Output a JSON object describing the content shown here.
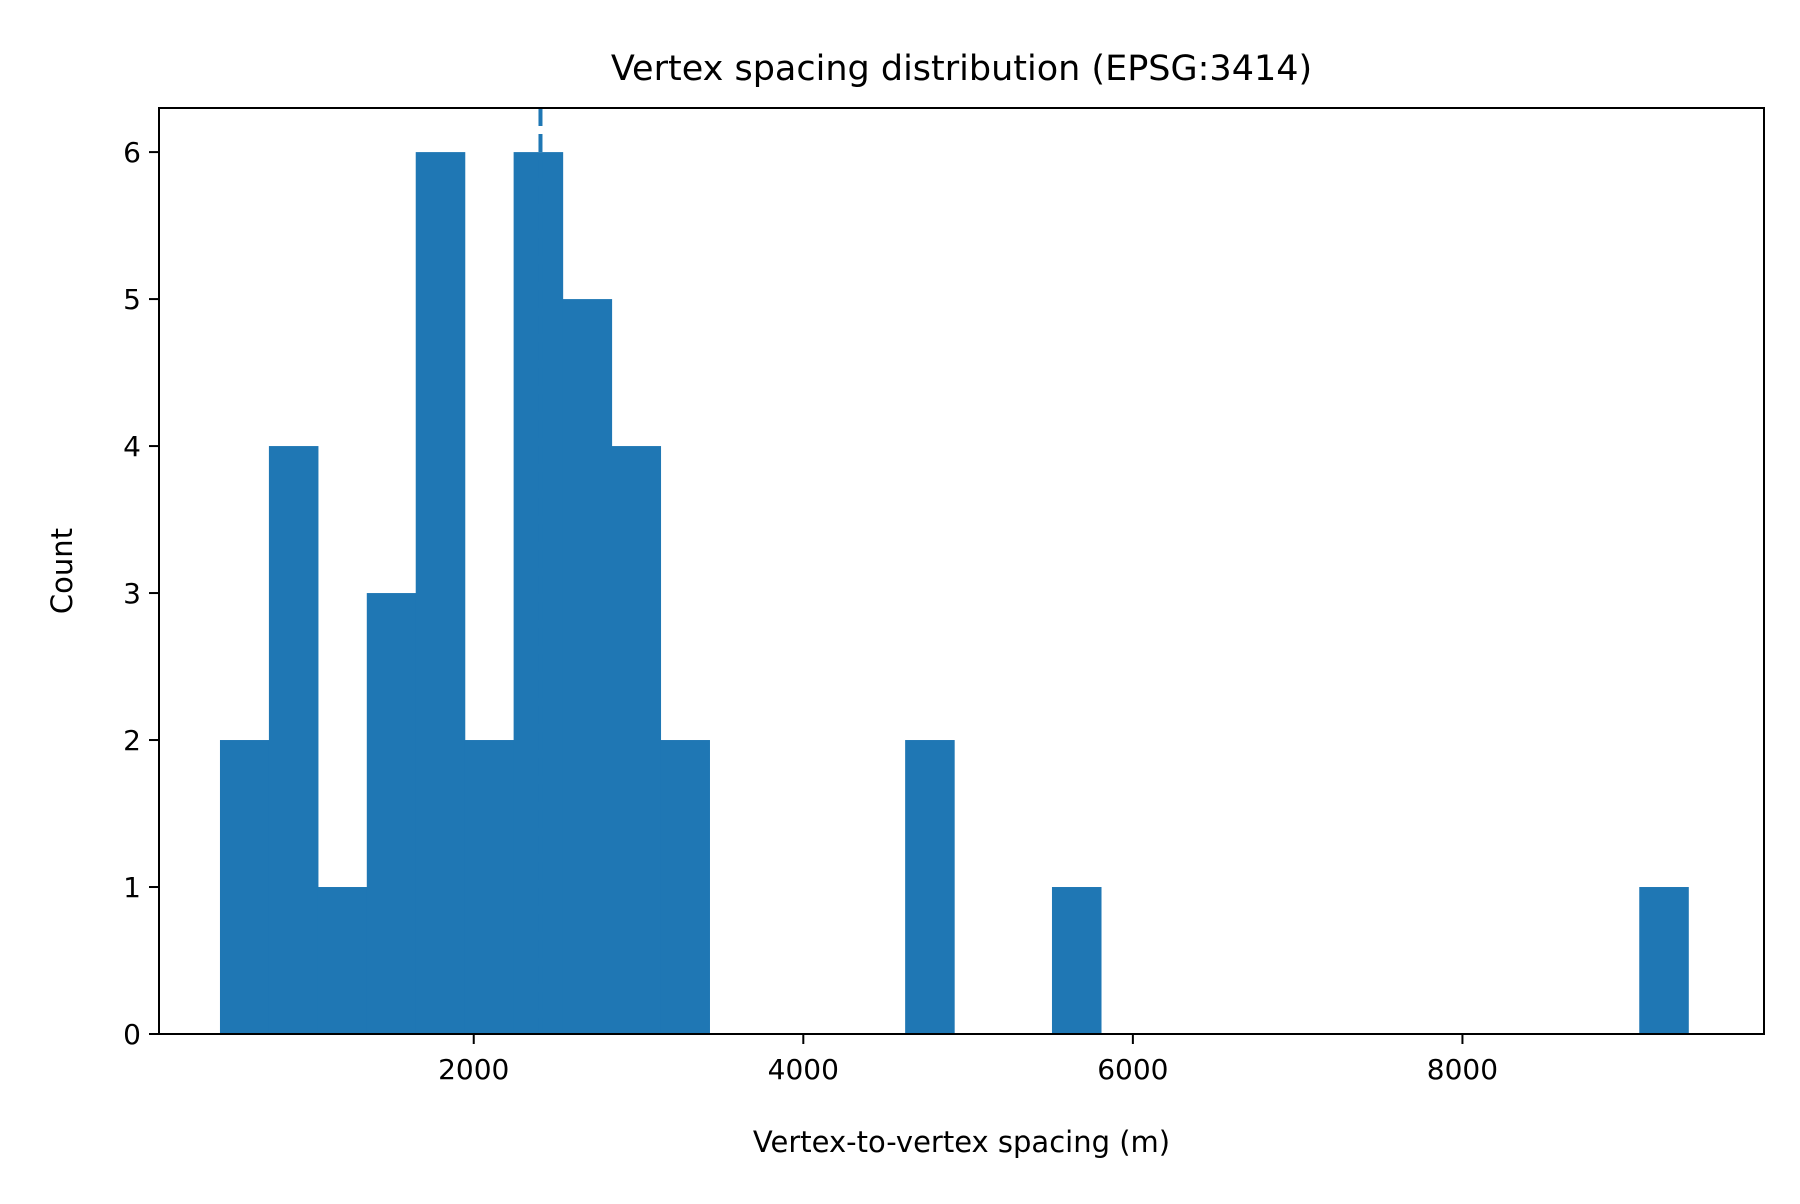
{
  "chart_data": {
    "type": "bar",
    "title": "Vertex spacing distribution (EPSG:3414)",
    "xlabel": "Vertex-to-vertex spacing (m)",
    "ylabel": "Count",
    "x_ticks": [
      "2000",
      "4000",
      "6000",
      "8000"
    ],
    "y_ticks": [
      "0",
      "1",
      "2",
      "3",
      "4",
      "5",
      "6"
    ],
    "xlim": [
      90,
      9830
    ],
    "ylim": [
      0,
      6.3
    ],
    "bin_edges": [
      460,
      757,
      1054,
      1351,
      1648,
      1945,
      2242,
      2539,
      2836,
      3133,
      3430,
      3727,
      4024,
      4321,
      4618,
      4915,
      5212,
      5509,
      5806,
      6103,
      6400,
      6697,
      6994,
      7291,
      7588,
      7885,
      8182,
      8479,
      8776,
      9073,
      9370
    ],
    "values": [
      2,
      4,
      1,
      3,
      6,
      2,
      6,
      5,
      4,
      2,
      0,
      0,
      0,
      0,
      2,
      0,
      0,
      1,
      0,
      0,
      0,
      0,
      0,
      0,
      0,
      0,
      0,
      0,
      0,
      1
    ],
    "reference_line": {
      "x": 2405,
      "style": "dashed"
    },
    "grid": false,
    "bar_color": "#1f77b4",
    "line_color": "#1f77b4"
  }
}
